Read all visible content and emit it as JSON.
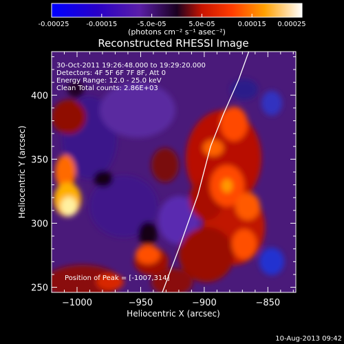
{
  "colorbar": {
    "tick_labels": [
      "-0.00025",
      "-0.00015",
      "-5.0e-05",
      "5.0e-05",
      "0.00015",
      "0.00025"
    ],
    "units_label": "(photons cm⁻² s⁻¹ asec⁻²)",
    "range": [
      -0.00025,
      0.00025
    ]
  },
  "annotations": {
    "time_range": "30-Oct-2011 19:26:48.000 to 19:29:20.000",
    "detectors": "Detectors: 4F 5F 6F 7F 8F, Att 0",
    "energy": "Energy Range: 12.0 - 25.0 keV",
    "clean": "Clean    Total counts: 2.86E+03",
    "peak": "Position of Peak = [-1007,314]"
  },
  "footer": {
    "date": "10-Aug-2013 09:42"
  },
  "chart_data": {
    "type": "heatmap",
    "title": "Reconstructed RHESSI Image",
    "xlabel": "Heliocentric X (arcsec)",
    "ylabel": "Heliocentric Y (arcsec)",
    "xlim": [
      -1020,
      -828
    ],
    "ylim": [
      246,
      434
    ],
    "x_ticks": [
      -1000,
      -950,
      -900,
      -850
    ],
    "x_tick_labels": [
      "−1000",
      "−950",
      "−900",
      "−850"
    ],
    "y_ticks": [
      250,
      300,
      350,
      400
    ],
    "y_tick_labels": [
      "250",
      "300",
      "350",
      "400"
    ],
    "colormap": "blue-purple-red-orange-yellow-white",
    "grid": false,
    "limb_line": [
      [
        -933,
        246
      ],
      [
        -920,
        280
      ],
      [
        -905,
        322
      ],
      [
        -895,
        360
      ],
      [
        -885,
        385
      ],
      [
        -873,
        412
      ],
      [
        -865,
        434
      ]
    ],
    "peak": [
      -1007,
      314
    ]
  }
}
